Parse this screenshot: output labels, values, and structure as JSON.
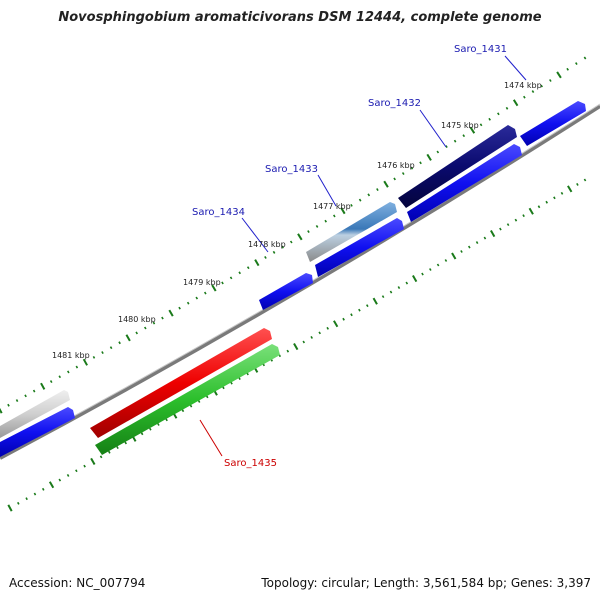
{
  "title": "Novosphingobium aromaticivorans DSM 12444, complete genome",
  "footer": {
    "accession": "Accession: NC_007794",
    "stats": "Topology: circular; Length: 3,561,584 bp; Genes: 3,397"
  },
  "colors": {
    "forward_gene": "#0a0af0",
    "reverse_gene": "#ee0000",
    "reverse_gene_rna": "#2cbf2c",
    "selected_dark": "#0a0a6e",
    "selected_mid": "#3a78b8",
    "other_gene": "#c8c8c8",
    "backbone": "#7a7a7a",
    "ruler_dots": "#1a7a1a",
    "label_forward": "#1a1ab0",
    "label_reverse": "#cc0000"
  },
  "ruler": {
    "tick_labels": [
      "1474 kbp",
      "1475 kbp",
      "1476 kbp",
      "1477 kbp",
      "1478 kbp",
      "1479 kbp",
      "1480 kbp",
      "1481 kbp"
    ]
  },
  "gene_labels": [
    {
      "id": "Saro_1431",
      "text": "Saro_1431"
    },
    {
      "id": "Saro_1432",
      "text": "Saro_1432"
    },
    {
      "id": "Saro_1433",
      "text": "Saro_1433"
    },
    {
      "id": "Saro_1434",
      "text": "Saro_1434"
    },
    {
      "id": "Saro_1435",
      "text": "Saro_1435"
    }
  ]
}
